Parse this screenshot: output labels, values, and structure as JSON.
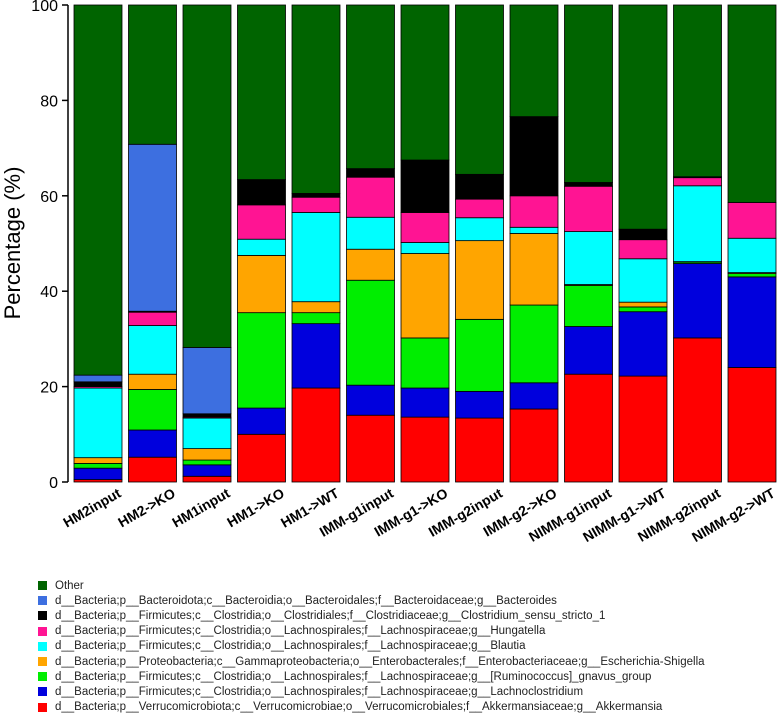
{
  "chart_data": {
    "type": "bar",
    "stacked": true,
    "ylabel": "Percentage (%)",
    "xlabel": "",
    "ylim": [
      0,
      100
    ],
    "yticks": [
      0,
      20,
      40,
      60,
      80,
      100
    ],
    "legend_position": "bottom",
    "categories": [
      "HM2input",
      "HM2->KO",
      "HM1input",
      "HM1->KO",
      "HM1->WT",
      "IMM-g1input",
      "IMM-g1->KO",
      "IMM-g2input",
      "IMM-g2->KO",
      "NIMM-g1input",
      "NIMM-g1->WT",
      "NIMM-g2input",
      "NIMM-g2->WT"
    ],
    "series": [
      {
        "name": "d__Bacteria;p__Verrucomicrobiota;c__Verrucomicrobiae;o__Verrucomicrobiales;f__Akkermansiaceae;g__Akkermansia",
        "color": "#ff0000",
        "values": [
          0.5,
          5.2,
          1.2,
          10.0,
          19.7,
          14.0,
          13.6,
          13.4,
          15.3,
          22.6,
          22.2,
          30.2,
          24.0
        ]
      },
      {
        "name": "d__Bacteria;p__Firmicutes;c__Clostridia;o__Lachnospirales;f__Lachnospiraceae;g__Lachnoclostridium",
        "color": "#0000dd",
        "values": [
          2.4,
          5.7,
          2.4,
          5.5,
          13.5,
          6.3,
          6.1,
          5.6,
          5.5,
          10.0,
          13.5,
          15.6,
          19.0
        ]
      },
      {
        "name": "d__Bacteria;p__Firmicutes;c__Clostridia;o__Lachnospirales;f__Lachnospiraceae;g__[Ruminococcus]_gnavus_group",
        "color": "#00ee00",
        "values": [
          1.0,
          8.5,
          1.0,
          20.0,
          2.3,
          22.0,
          10.5,
          15.1,
          16.3,
          8.6,
          1.0,
          0.3,
          0.7
        ]
      },
      {
        "name": "d__Bacteria;p__Proteobacteria;c__Gammaproteobacteria;o__Enterobacterales;f__Enterobacteriaceae;g__Escherichia-Shigella",
        "color": "#ffa500",
        "values": [
          1.2,
          3.2,
          2.4,
          12.0,
          2.3,
          6.5,
          17.7,
          16.5,
          15.0,
          0.2,
          1.0,
          0.1,
          0.2
        ]
      },
      {
        "name": "d__Bacteria;p__Firmicutes;c__Clostridia;o__Lachnospirales;f__Lachnospiraceae;g__Blautia",
        "color": "#00ffff",
        "values": [
          14.6,
          10.2,
          6.4,
          3.4,
          18.7,
          6.7,
          2.3,
          4.8,
          1.3,
          11.1,
          9.1,
          15.9,
          7.2
        ]
      },
      {
        "name": "d__Bacteria;p__Firmicutes;c__Clostridia;o__Lachnospirales;f__Lachnospiraceae;g__Hungatella",
        "color": "#ff1493",
        "values": [
          0.3,
          2.8,
          0.2,
          7.2,
          3.2,
          8.4,
          6.3,
          3.9,
          6.6,
          9.5,
          4.0,
          1.7,
          7.5
        ]
      },
      {
        "name": "d__Bacteria;p__Firmicutes;c__Clostridia;o__Clostridiales;f__Clostridiaceae;g__Clostridium_sensu_stricto_1",
        "color": "#000000",
        "values": [
          1.0,
          0.2,
          0.7,
          5.3,
          0.8,
          1.8,
          11.0,
          5.2,
          16.6,
          0.8,
          2.2,
          0.2,
          0.0
        ]
      },
      {
        "name": "d__Bacteria;p__Bacteroidota;c__Bacteroidia;o__Bacteroidales;f__Bacteroidaceae;g__Bacteroides",
        "color": "#3d6fe0",
        "values": [
          1.4,
          35.0,
          13.9,
          0.0,
          0.0,
          0.0,
          0.0,
          0.0,
          0.0,
          0.0,
          0.0,
          0.0,
          0.0
        ]
      },
      {
        "name": "Other",
        "color": "#006400",
        "values": [
          77.6,
          29.2,
          71.8,
          36.6,
          39.5,
          34.3,
          32.5,
          35.5,
          23.4,
          37.2,
          47.0,
          36.0,
          41.4
        ]
      }
    ]
  }
}
